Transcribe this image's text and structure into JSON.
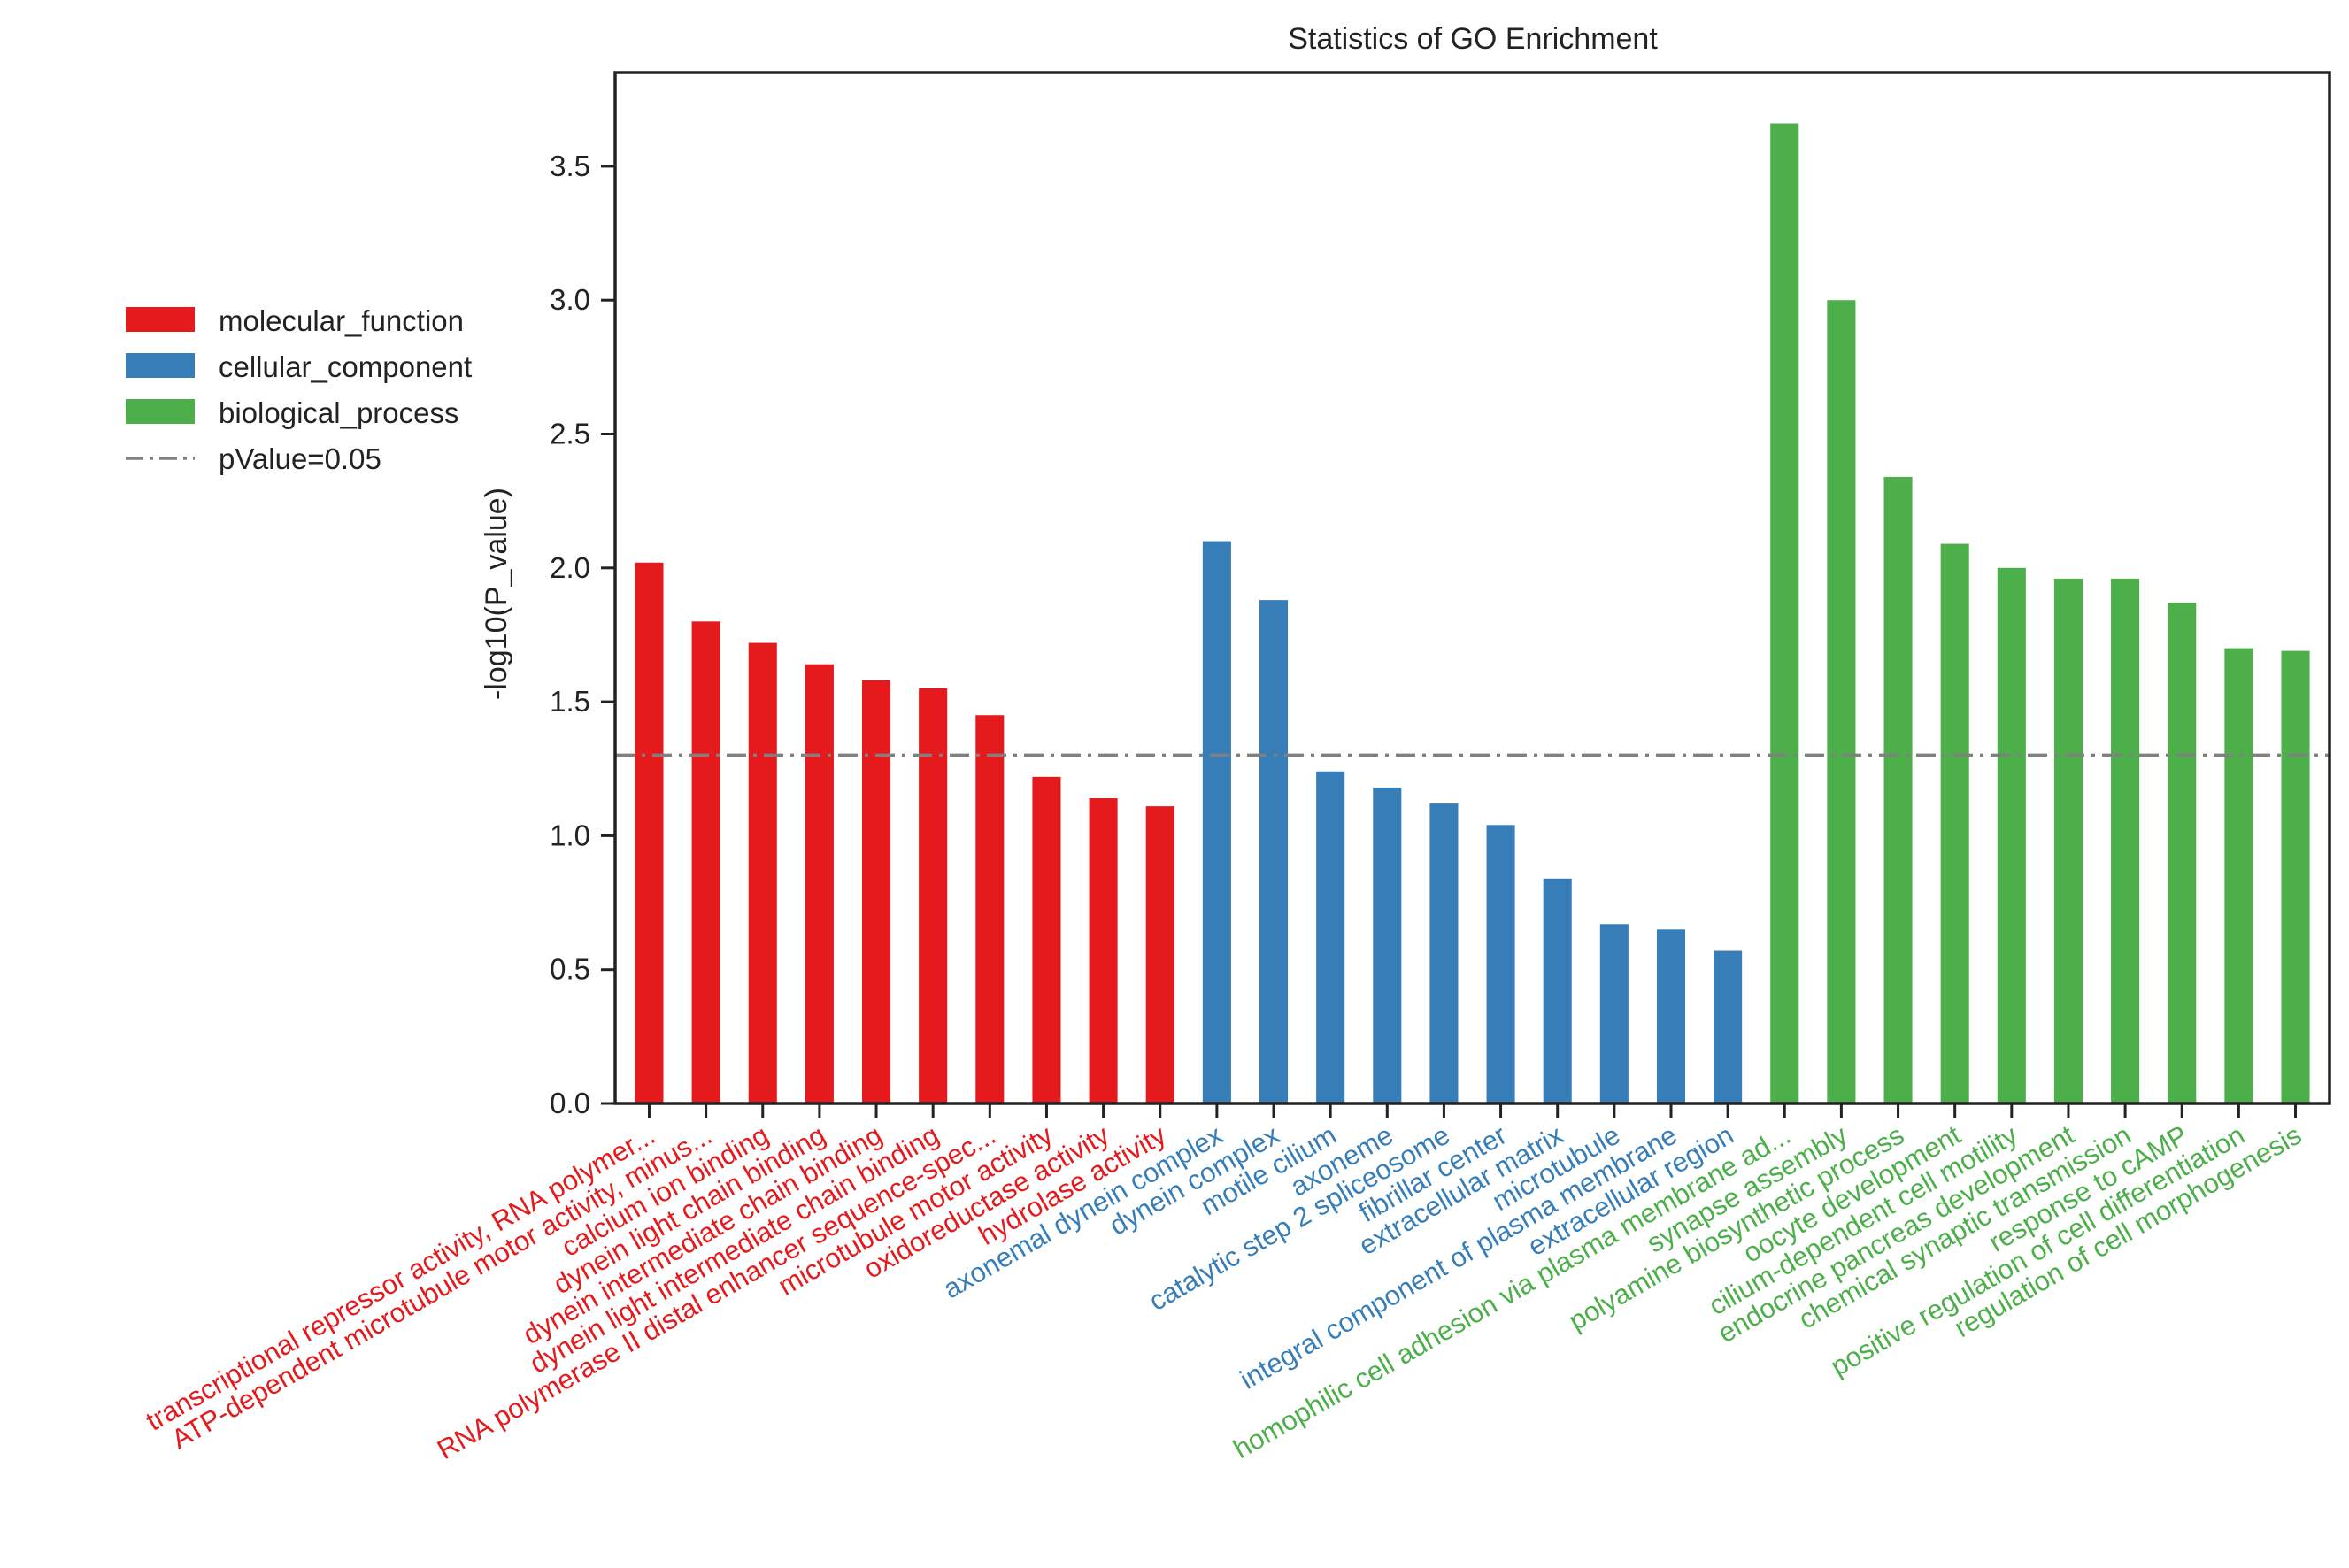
{
  "chart_data": {
    "type": "bar",
    "title": "Statistics of GO Enrichment",
    "xlabel": "",
    "ylabel": "-log10(P_value)",
    "ylim": [
      0,
      3.85
    ],
    "yticks": [
      0.0,
      0.5,
      1.0,
      1.5,
      2.0,
      2.5,
      3.0,
      3.5
    ],
    "ytick_labels": [
      "0.0",
      "0.5",
      "1.0",
      "1.5",
      "2.0",
      "2.5",
      "3.0",
      "3.5"
    ],
    "legend_position": "outside-left",
    "grid": false,
    "threshold": {
      "label": "pValue=0.05",
      "value": 1.301,
      "color": "#808080",
      "style": "dash-dot"
    },
    "series": [
      {
        "name": "molecular_function",
        "color": "#e41a1c",
        "categories": [
          "transcriptional repressor activity, RNA polymer...",
          "ATP-dependent microtubule motor activity, minus...",
          "calcium ion binding",
          "dynein light chain binding",
          "dynein intermediate chain binding",
          "dynein light intermediate chain binding",
          "RNA polymerase II distal enhancer sequence-spec...",
          "microtubule motor activity",
          "oxidoreductase activity",
          "hydrolase activity"
        ],
        "values": [
          2.02,
          1.8,
          1.72,
          1.64,
          1.58,
          1.55,
          1.45,
          1.22,
          1.14,
          1.11
        ]
      },
      {
        "name": "cellular_component",
        "color": "#377eb8",
        "categories": [
          "axonemal dynein complex",
          "dynein complex",
          "motile cilium",
          "axoneme",
          "catalytic step 2 spliceosome",
          "fibrillar center",
          "extracellular matrix",
          "microtubule",
          "integral component of plasma membrane",
          "extracellular region"
        ],
        "values": [
          2.1,
          1.88,
          1.24,
          1.18,
          1.12,
          1.04,
          0.84,
          0.67,
          0.65,
          0.57
        ]
      },
      {
        "name": "biological_process",
        "color": "#4daf4a",
        "categories": [
          "homophilic cell adhesion via plasma membrane ad...",
          "synapse assembly",
          "polyamine biosynthetic process",
          "oocyte development",
          "cilium-dependent cell motility",
          "endocrine pancreas development",
          "chemical synaptic transmission",
          "response to cAMP",
          "positive regulation of cell differentiation",
          "regulation of cell morphogenesis"
        ],
        "values": [
          3.66,
          3.0,
          2.34,
          2.09,
          2.0,
          1.96,
          1.96,
          1.87,
          1.7,
          1.69
        ]
      }
    ]
  }
}
